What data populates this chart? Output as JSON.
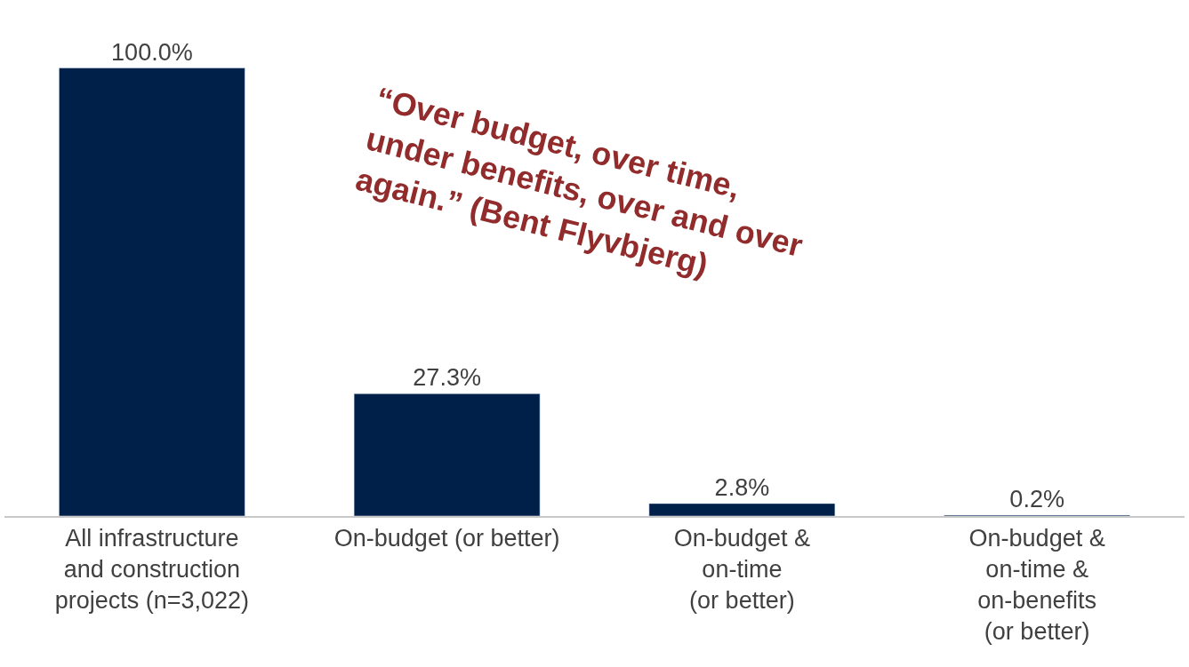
{
  "chart_data": {
    "type": "bar",
    "categories": [
      "All infrastructure\nand construction\nprojects (n=3,022)",
      "On-budget (or better)",
      "On-budget &\non-time\n(or better)",
      "On-budget &\non-time &\non-benefits\n(or better)"
    ],
    "values": [
      100,
      27.3,
      2.8,
      0.2
    ],
    "value_labels": [
      "100.0%",
      "27.3%",
      "2.8%",
      "0.2%"
    ],
    "color": "#00204a",
    "annotations": [
      "“Over budget, over time,\nunder benefits, over and over\nagain.” (Bent Flyvbjerg)"
    ]
  }
}
